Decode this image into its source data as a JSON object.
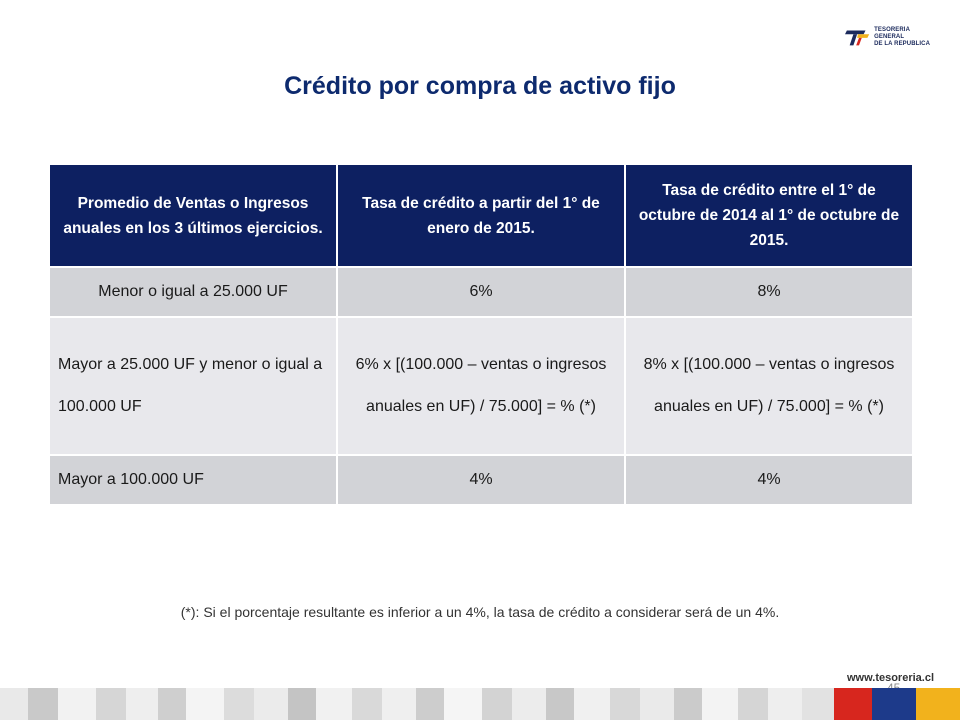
{
  "header": {
    "logo_text_line1": "TESORERIA GENERAL",
    "logo_text_line2": "DE LA REPUBLICA",
    "title": "Crédito por compra de activo fijo"
  },
  "table": {
    "headers": [
      "Promedio de Ventas o Ingresos anuales en los 3 últimos ejercicios.",
      "Tasa de crédito a partir del 1° de enero de 2015.",
      "Tasa de crédito entre el 1° de octubre de 2014 al 1° de octubre de 2015."
    ],
    "rows": [
      [
        "Menor o igual a 25.000 UF",
        "6%",
        "8%"
      ],
      [
        "Mayor a 25.000 UF y menor o igual a 100.000 UF",
        "6% x [(100.000 – ventas o ingresos anuales en UF) / 75.000] = %  (*)",
        "8% x [(100.000 – ventas o ingresos anuales en UF) / 75.000] = %  (*)"
      ],
      [
        "Mayor a 100.000 UF",
        "4%",
        "4%"
      ]
    ]
  },
  "footnote": "(*): Si el porcentaje resultante es inferior a un 4%, la tasa de crédito a considerar será de un 4%.",
  "footer": {
    "website": "www.tesoreria.cl",
    "page_number": "45"
  },
  "colors": {
    "title": "#0d2a6e",
    "header_bg": "#0d2061",
    "row_dark": "#d2d3d7",
    "row_light": "#e8e8ec",
    "footer_red": "#d7261e",
    "footer_blue": "#1d3a8a",
    "footer_yellow": "#f2b21c"
  }
}
